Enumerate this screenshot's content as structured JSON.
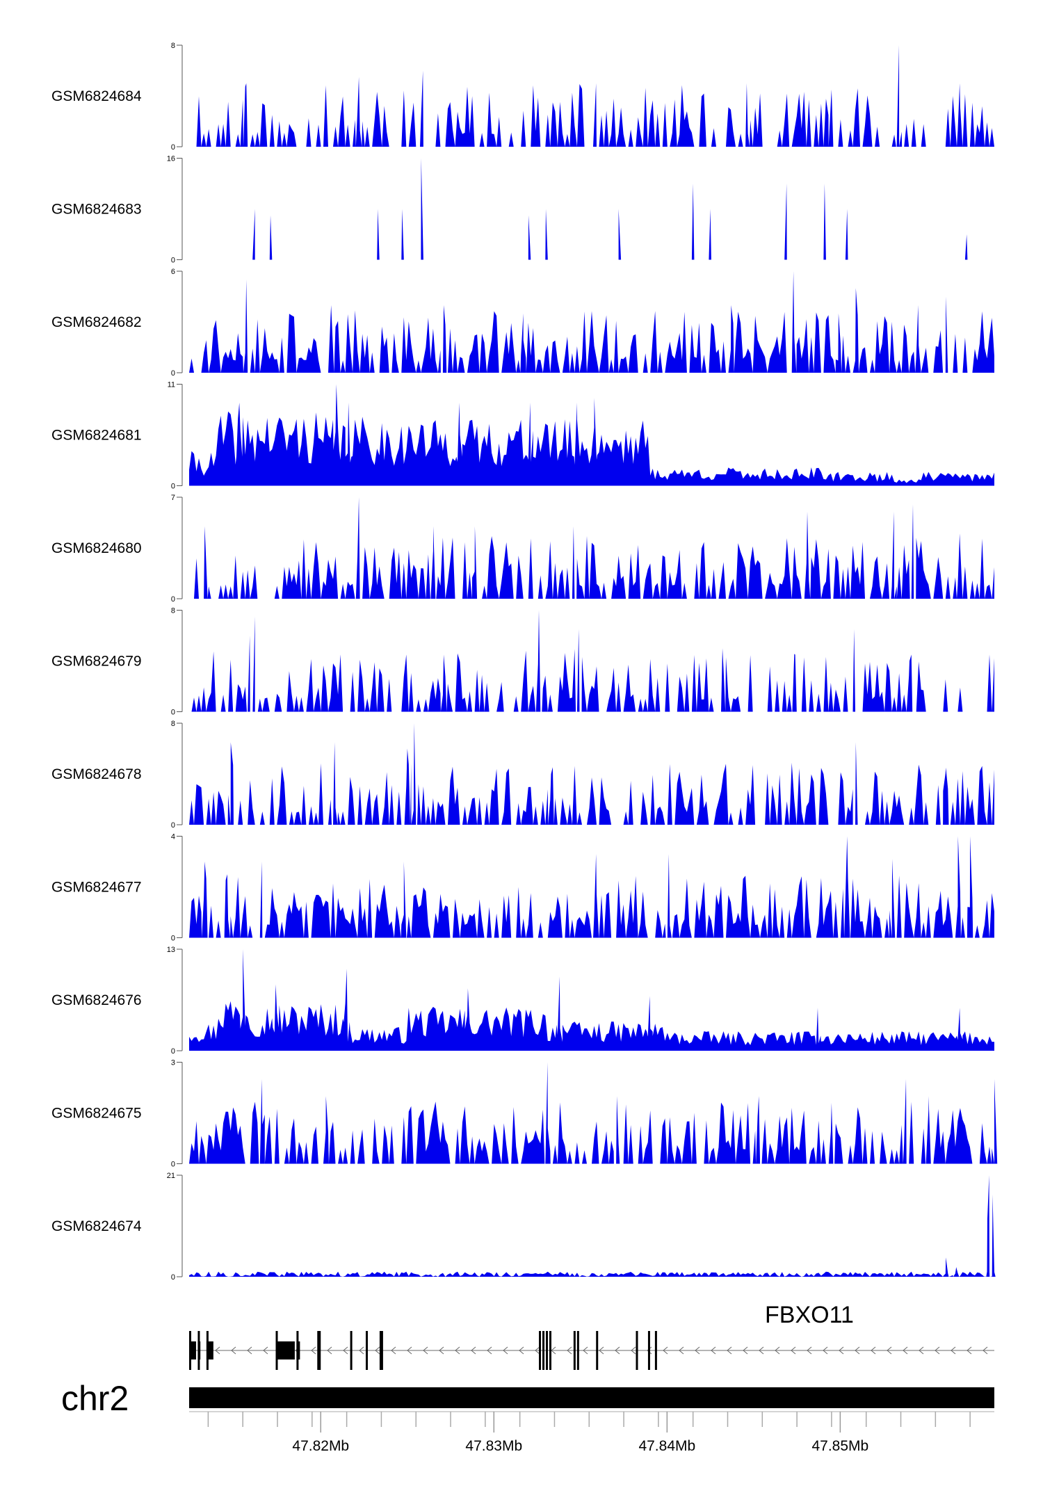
{
  "chart_data": {
    "type": "area",
    "chromosome": "chr2",
    "x_unit": "Mb",
    "xlim": [
      47.8124,
      47.8589
    ],
    "x_ticks": [
      {
        "value": 47.82,
        "label": "47.82Mb"
      },
      {
        "value": 47.83,
        "label": "47.83Mb"
      },
      {
        "value": 47.84,
        "label": "47.84Mb"
      },
      {
        "value": 47.85,
        "label": "47.85Mb"
      }
    ],
    "minor_ticks": [
      47.8135,
      47.8155,
      47.8175,
      47.8195,
      47.8215,
      47.8235,
      47.8255,
      47.8275,
      47.8295,
      47.8315,
      47.8335,
      47.8355,
      47.8375,
      47.8395,
      47.8415,
      47.8435,
      47.8455,
      47.8475,
      47.8495,
      47.8515,
      47.8535,
      47.8555,
      47.8575
    ],
    "fill_color": "#0000ee",
    "tracks": [
      {
        "name": "GSM6824684",
        "ymax": 8,
        "ymin": 0,
        "style": "spiky",
        "seed": 11,
        "sparsity": 0.55,
        "peaks": [
          [
            47.8157,
            5
          ],
          [
            47.8222,
            5.5
          ],
          [
            47.8259,
            6
          ],
          [
            47.8359,
            5
          ],
          [
            47.8446,
            5
          ],
          [
            47.8534,
            8
          ],
          [
            47.8569,
            5
          ],
          [
            47.8495,
            4.5
          ]
        ]
      },
      {
        "name": "GSM6824683",
        "ymax": 16,
        "ymin": 0,
        "style": "triangles",
        "seed": 23,
        "start": 47.8142,
        "peaks": [
          [
            47.8162,
            8
          ],
          [
            47.8171,
            7
          ],
          [
            47.8233,
            8
          ],
          [
            47.8247,
            8
          ],
          [
            47.8258,
            16
          ],
          [
            47.832,
            7
          ],
          [
            47.833,
            8
          ],
          [
            47.8372,
            8
          ],
          [
            47.8415,
            12
          ],
          [
            47.8425,
            8
          ],
          [
            47.8469,
            12
          ],
          [
            47.8491,
            12
          ],
          [
            47.8504,
            8
          ],
          [
            47.8573,
            4
          ]
        ]
      },
      {
        "name": "GSM6824682",
        "ymax": 6,
        "ymin": 0,
        "style": "spiky",
        "seed": 37,
        "sparsity": 0.35,
        "peaks": [
          [
            47.8157,
            5.5
          ],
          [
            47.8206,
            4
          ],
          [
            47.8271,
            4
          ],
          [
            47.8317,
            3.5
          ],
          [
            47.8437,
            4
          ],
          [
            47.8473,
            6
          ],
          [
            47.8499,
            3.5
          ],
          [
            47.8509,
            5
          ],
          [
            47.8545,
            4
          ],
          [
            47.8561,
            4.5
          ]
        ]
      },
      {
        "name": "GSM6824681",
        "ymax": 11,
        "ymin": 0,
        "style": "dense",
        "seed": 41,
        "segments": [
          [
            47.8124,
            47.814,
            3.0
          ],
          [
            47.814,
            47.82,
            6.5
          ],
          [
            47.82,
            47.825,
            6.0
          ],
          [
            47.825,
            47.839,
            5.8
          ],
          [
            47.839,
            47.8488,
            1.6
          ],
          [
            47.8488,
            47.853,
            1.2
          ],
          [
            47.853,
            47.8544,
            0.7
          ],
          [
            47.8544,
            47.8589,
            1.2
          ]
        ],
        "peaks": [
          [
            47.8153,
            9
          ],
          [
            47.8209,
            11
          ],
          [
            47.8216,
            9
          ],
          [
            47.828,
            9
          ],
          [
            47.8321,
            9
          ],
          [
            47.8348,
            9
          ],
          [
            47.8358,
            9.5
          ]
        ]
      },
      {
        "name": "GSM6824680",
        "ymax": 7,
        "ymin": 0,
        "style": "spiky",
        "seed": 53,
        "sparsity": 0.4,
        "peaks": [
          [
            47.8133,
            5
          ],
          [
            47.8222,
            7
          ],
          [
            47.8265,
            5
          ],
          [
            47.8289,
            5
          ],
          [
            47.8346,
            5
          ],
          [
            47.8481,
            6
          ],
          [
            47.8531,
            6
          ],
          [
            47.8542,
            6.5
          ],
          [
            47.8569,
            4.5
          ]
        ]
      },
      {
        "name": "GSM6824679",
        "ymax": 8,
        "ymin": 0,
        "style": "spiky",
        "seed": 67,
        "sparsity": 0.5,
        "peaks": [
          [
            47.8162,
            7.5
          ],
          [
            47.8159,
            6
          ],
          [
            47.8271,
            4.5
          ],
          [
            47.8326,
            8
          ],
          [
            47.8349,
            6.5
          ],
          [
            47.8432,
            5
          ],
          [
            47.8474,
            4.5
          ],
          [
            47.8508,
            6.5
          ],
          [
            47.854,
            4
          ]
        ]
      },
      {
        "name": "GSM6824678",
        "ymax": 8,
        "ymin": 0,
        "style": "spiky",
        "seed": 71,
        "sparsity": 0.5,
        "peaks": [
          [
            47.8148,
            6.5
          ],
          [
            47.8208,
            6.5
          ],
          [
            47.825,
            6
          ],
          [
            47.8254,
            8
          ],
          [
            47.8333,
            4
          ],
          [
            47.8509,
            6.5
          ],
          [
            47.8561,
            4.5
          ]
        ]
      },
      {
        "name": "GSM6824677",
        "ymax": 4,
        "ymin": 0,
        "style": "spiky",
        "seed": 83,
        "sparsity": 0.3,
        "peaks": [
          [
            47.8133,
            3
          ],
          [
            47.8146,
            2.5
          ],
          [
            47.8166,
            3
          ],
          [
            47.8248,
            3
          ],
          [
            47.8359,
            3.3
          ],
          [
            47.8401,
            3.3
          ],
          [
            47.8504,
            4
          ],
          [
            47.853,
            3.1
          ],
          [
            47.8568,
            4
          ],
          [
            47.8575,
            4
          ]
        ]
      },
      {
        "name": "GSM6824676",
        "ymax": 13,
        "ymin": 0,
        "style": "dense",
        "seed": 97,
        "segments": [
          [
            47.8124,
            47.814,
            3.0
          ],
          [
            47.814,
            47.816,
            6.0
          ],
          [
            47.816,
            47.8215,
            5.0
          ],
          [
            47.8215,
            47.825,
            2.5
          ],
          [
            47.825,
            47.833,
            4.5
          ],
          [
            47.833,
            47.84,
            3.0
          ],
          [
            47.84,
            47.8589,
            2.0
          ]
        ],
        "peaks": [
          [
            47.8155,
            13
          ],
          [
            47.8215,
            10.5
          ],
          [
            47.8174,
            8.5
          ],
          [
            47.8285,
            8
          ],
          [
            47.8338,
            9.5
          ],
          [
            47.839,
            7
          ],
          [
            47.8487,
            5.5
          ],
          [
            47.8569,
            5.5
          ]
        ]
      },
      {
        "name": "GSM6824675",
        "ymax": 3,
        "ymin": 0,
        "style": "spiky",
        "seed": 103,
        "sparsity": 0.45,
        "peaks": [
          [
            47.8166,
            2.5
          ],
          [
            47.8203,
            2
          ],
          [
            47.8331,
            3
          ],
          [
            47.8371,
            2
          ],
          [
            47.8453,
            2
          ],
          [
            47.8495,
            1.8
          ],
          [
            47.8538,
            2.5
          ],
          [
            47.8551,
            2
          ],
          [
            47.8589,
            2.5
          ]
        ]
      },
      {
        "name": "GSM6824674",
        "ymax": 21,
        "ymin": 0,
        "style": "flat",
        "seed": 113,
        "peaks": [
          [
            47.8561,
            4
          ],
          [
            47.8567,
            2
          ],
          [
            47.8585,
            12
          ],
          [
            47.8586,
            21
          ],
          [
            47.8588,
            17
          ]
        ]
      }
    ]
  },
  "gene_track": {
    "gene_name": "FBXO11",
    "strand": "-",
    "exons": [
      {
        "start": 47.8124,
        "end": 47.8128,
        "height": "thick"
      },
      {
        "start": 47.8129,
        "end": 47.81305,
        "height": "thick"
      },
      {
        "start": 47.8134,
        "end": 47.8138,
        "height": "thick"
      },
      {
        "start": 47.8174,
        "end": 47.8185,
        "height": "thick"
      },
      {
        "start": 47.8186,
        "end": 47.8188,
        "height": "thick"
      },
      {
        "start": 47.8198,
        "end": 47.82,
        "height": "thin"
      },
      {
        "start": 47.8217,
        "end": 47.8218,
        "height": "thin"
      },
      {
        "start": 47.8226,
        "end": 47.8227,
        "height": "thin"
      },
      {
        "start": 47.8234,
        "end": 47.8236,
        "height": "thin"
      },
      {
        "start": 47.8326,
        "end": 47.8327,
        "height": "thin"
      },
      {
        "start": 47.8328,
        "end": 47.8329,
        "height": "thin"
      },
      {
        "start": 47.833,
        "end": 47.8331,
        "height": "thin"
      },
      {
        "start": 47.8332,
        "end": 47.8333,
        "height": "thin"
      },
      {
        "start": 47.8346,
        "end": 47.8347,
        "height": "thin"
      },
      {
        "start": 47.8348,
        "end": 47.8349,
        "height": "thin"
      },
      {
        "start": 47.8359,
        "end": 47.836,
        "height": "thin"
      },
      {
        "start": 47.8382,
        "end": 47.8383,
        "height": "thin"
      },
      {
        "start": 47.8389,
        "end": 47.839,
        "height": "thin"
      },
      {
        "start": 47.8393,
        "end": 47.8394,
        "height": "thin"
      }
    ]
  }
}
